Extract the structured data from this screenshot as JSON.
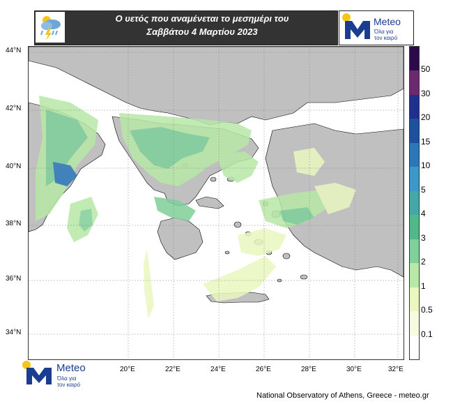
{
  "title": {
    "line1": "Ο υετός που αναμένεται το μεσημέρι του",
    "line2": "Σαββάτου 4 Μαρτίου 2023"
  },
  "logo": {
    "brand": "Meteo",
    "tagline_1": "Όλα για",
    "tagline_2": "τον καιρό",
    "colors": {
      "blue": "#1a3d8f",
      "sun": "#f5c518"
    }
  },
  "weather_icon": "rain-cloud-lightning-icon",
  "axes": {
    "lat_ticks": [
      "44°N",
      "42°N",
      "40°N",
      "38°N",
      "36°N",
      "34°N"
    ],
    "lon_ticks": [
      "20°E",
      "22°E",
      "24°E",
      "26°E",
      "28°E",
      "30°E",
      "32°E"
    ]
  },
  "colorbar": {
    "labels": [
      "50",
      "30",
      "20",
      "15",
      "10",
      "5",
      "4",
      "3",
      "2",
      "1",
      "0.5",
      "0.1"
    ],
    "colors": [
      "#2d0a4a",
      "#6b2a6b",
      "#1f2f8f",
      "#1f4f9f",
      "#2a78b8",
      "#3b98c8",
      "#45a8a8",
      "#52b88a",
      "#7fd09a",
      "#b8e8a8",
      "#eaf7c0",
      "#f7fbe0",
      "#ffffff"
    ]
  },
  "map_colors": {
    "land": "#c0c0c0",
    "sea": "#ffffff",
    "border": "#000000"
  },
  "footer": "National Observatory of Athens, Greece - meteo.gr"
}
